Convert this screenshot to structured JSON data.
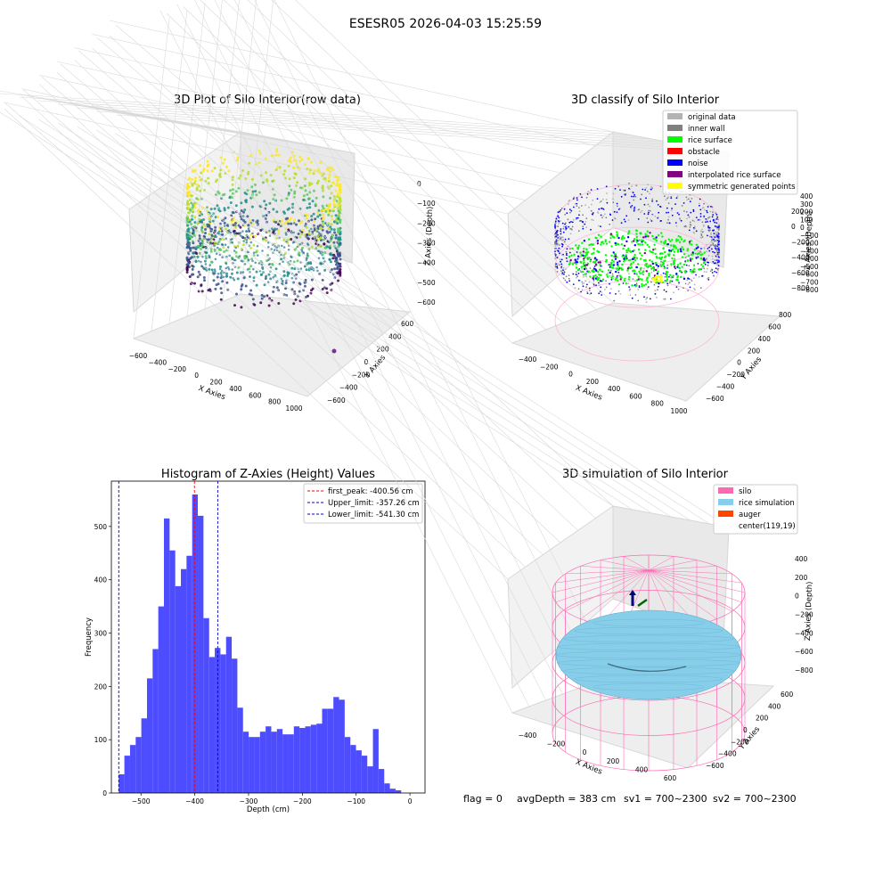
{
  "suptitle": "ESESR05 2026-04-03 15:25:59",
  "status": {
    "flag": "flag = 0",
    "avgdepth": "avgDepth = 383 cm",
    "sv1": "sv1 = 700~2300",
    "sv2": "sv2 = 700~2300"
  },
  "colors": {
    "hist_bar": "#4d4dff",
    "first_peak": "#ff0000",
    "limits": "#0000cc",
    "original_data": "#b3b3b3",
    "inner_wall": "#808080",
    "rice_surface": "#00ff00",
    "obstacle": "#ff0000",
    "noise": "#0000ff",
    "interpolated_rice_surface": "#800080",
    "symmetric_generated_points": "#ffff00",
    "silo": "#ff69b4",
    "rice_simulation": "#87ceeb",
    "auger": "#ff4500"
  },
  "chart_data": [
    {
      "type": "scatter",
      "dimension": "3d",
      "title": "3D Plot of Silo Interior(row data)",
      "xlabel": "X Axies",
      "ylabel": "Y Axies",
      "zlabel": "Z Axies (Depth)",
      "x_ticks": [
        "−600",
        "−400",
        "−200",
        "0",
        "200",
        "400",
        "600",
        "800",
        "1000"
      ],
      "y_ticks": [
        "600",
        "400",
        "200",
        "0",
        "−200",
        "−400",
        "−600"
      ],
      "z_ticks": [
        "0",
        "−100",
        "−200",
        "−300",
        "−400",
        "−500",
        "−600"
      ],
      "colormap": "viridis",
      "grid": true
    },
    {
      "type": "scatter",
      "dimension": "3d",
      "title": "3D classify of Silo Interior",
      "xlabel": "X Axies",
      "ylabel": "Y Axies",
      "zlabel": "Z Axies (Depth)",
      "x_ticks": [
        "−400",
        "−200",
        "0",
        "200",
        "400",
        "600",
        "800",
        "1000"
      ],
      "y_ticks": [
        "800",
        "600",
        "400",
        "200",
        "0",
        "−200",
        "−400",
        "−600"
      ],
      "z_ticks": [
        "200",
        "0",
        "−200",
        "−400",
        "−600",
        "−800"
      ],
      "z_ticks_top": [
        "400",
        "300",
        "200",
        "100",
        "0",
        "−100",
        "−200",
        "−300",
        "−400",
        "−500",
        "−600",
        "−700",
        "−800"
      ],
      "legend": [
        "original data",
        "inner wall",
        "rice surface",
        "obstacle",
        "noise",
        "interpolated rice surface",
        "symmetric generated points"
      ],
      "legend_position": "top-right",
      "grid": true
    },
    {
      "type": "bar",
      "title": "Histogram of Z-Axies (Height) Values",
      "xlabel": "Depth (cm)",
      "ylabel": "Frequency",
      "xlim": [
        -555,
        28
      ],
      "ylim": [
        0,
        585
      ],
      "x_ticks": [
        -500,
        -400,
        -300,
        -200,
        -100,
        0
      ],
      "x_tick_labels": [
        "−500",
        "−400",
        "−300",
        "−200",
        "−100",
        "0"
      ],
      "y_ticks": [
        0,
        100,
        200,
        300,
        400,
        500
      ],
      "bin_start": -541.3,
      "bin_width": 10.5,
      "values": [
        35,
        70,
        90,
        105,
        140,
        215,
        270,
        350,
        515,
        455,
        388,
        420,
        445,
        560,
        520,
        328,
        255,
        272,
        260,
        293,
        252,
        160,
        115,
        105,
        105,
        115,
        125,
        115,
        120,
        110,
        110,
        125,
        122,
        125,
        128,
        130,
        158,
        158,
        180,
        175,
        105,
        90,
        80,
        70,
        50,
        120,
        45,
        18,
        8,
        5
      ],
      "lines": [
        {
          "label": "first_peak: -400.56 cm",
          "value": -400.56,
          "style": "dashed",
          "color": "#ff0000"
        },
        {
          "label": "Upper_limit: -357.26 cm",
          "value": -357.26,
          "style": "dashed",
          "color": "#0000cc"
        },
        {
          "label": "Lower_limit: -541.30 cm",
          "value": -541.3,
          "style": "dashed",
          "color": "#0000cc"
        }
      ],
      "legend_position": "top-right"
    },
    {
      "type": "scatter",
      "dimension": "3d",
      "title": "3D simulation of Silo Interior",
      "xlabel": "X Axies",
      "ylabel": "Y Axies",
      "zlabel": "Z Axies (Depth)",
      "x_ticks": [
        "−400",
        "−200",
        "0",
        "200",
        "400",
        "600"
      ],
      "y_ticks": [
        "600",
        "400",
        "200",
        "0",
        "−200",
        "−400",
        "−600"
      ],
      "z_ticks": [
        "400",
        "200",
        "0",
        "−200",
        "−400",
        "−600",
        "−800"
      ],
      "legend": [
        "silo",
        "rice simulation",
        "auger",
        "center(119,19)"
      ],
      "legend_position": "top-right",
      "grid": true
    }
  ]
}
